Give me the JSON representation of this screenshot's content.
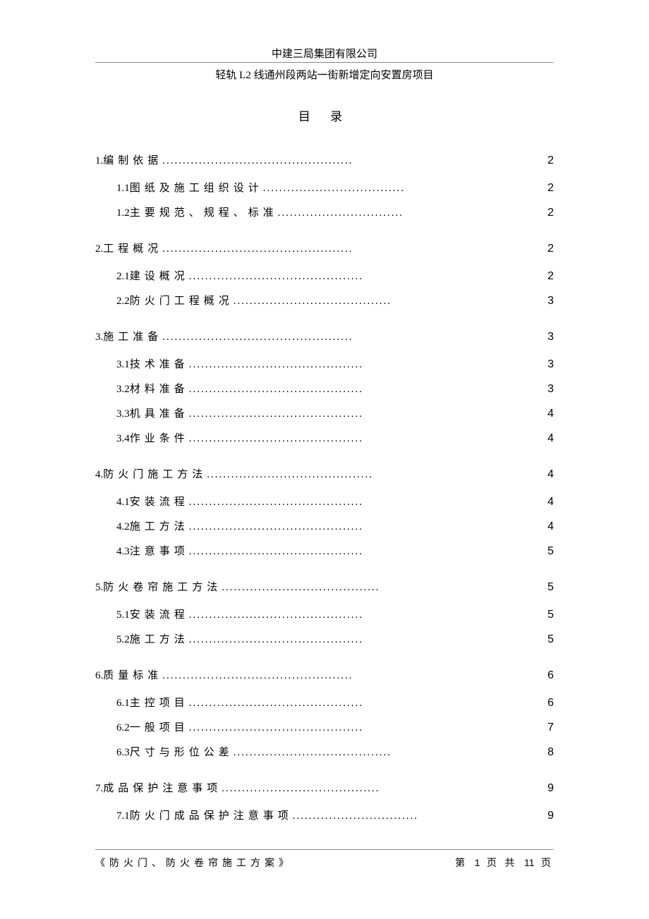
{
  "header": {
    "company": "中建三局集团有限公司",
    "project": "轻轨 L2 线通州段两站一街新增定向安置房项目"
  },
  "title": "目 录",
  "toc": [
    {
      "level": 1,
      "num": "1.",
      "label": "编制依据",
      "dots": "...............................................",
      "page": "2"
    },
    {
      "level": 2,
      "num": "1.1",
      "label": " 图纸及施工组织设计",
      "dots": "...................................",
      "page": "2"
    },
    {
      "level": 2,
      "num": "1.2",
      "label": " 主要规范、规程、标准",
      "dots": "...............................",
      "page": "2"
    },
    {
      "level": 1,
      "num": "2.",
      "label": "工程概况",
      "dots": "...............................................",
      "page": "2"
    },
    {
      "level": 2,
      "num": "2.1",
      "label": " 建设概况",
      "dots": "...........................................",
      "page": "2"
    },
    {
      "level": 2,
      "num": "2.2",
      "label": " 防火门工程概况",
      "dots": ".......................................",
      "page": "3"
    },
    {
      "level": 1,
      "num": "3.",
      "label": "施工准备",
      "dots": "...............................................",
      "page": "3"
    },
    {
      "level": 2,
      "num": "3.1",
      "label": " 技术准备",
      "dots": "...........................................",
      "page": "3"
    },
    {
      "level": 2,
      "num": "3.2",
      "label": " 材料准备",
      "dots": "...........................................",
      "page": "3"
    },
    {
      "level": 2,
      "num": "3.3",
      "label": " 机具准备",
      "dots": "...........................................",
      "page": "4"
    },
    {
      "level": 2,
      "num": "3.4",
      "label": " 作业条件",
      "dots": "...........................................",
      "page": "4"
    },
    {
      "level": 1,
      "num": "4.",
      "label": "防火门施工方法",
      "dots": ".........................................",
      "page": "4"
    },
    {
      "level": 2,
      "num": "4.1",
      "label": " 安装流程",
      "dots": "...........................................",
      "page": "4"
    },
    {
      "level": 2,
      "num": "4.2",
      "label": " 施工方法",
      "dots": "...........................................",
      "page": "4"
    },
    {
      "level": 2,
      "num": "4.3",
      "label": " 注意事项",
      "dots": "...........................................",
      "page": "5"
    },
    {
      "level": 1,
      "num": "5.",
      "label": "防火卷帘施工方法",
      "dots": ".......................................",
      "page": "5"
    },
    {
      "level": 2,
      "num": "5.1",
      "label": " 安装流程",
      "dots": "...........................................",
      "page": "5"
    },
    {
      "level": 2,
      "num": "5.2",
      "label": " 施工方法",
      "dots": "...........................................",
      "page": "5"
    },
    {
      "level": 1,
      "num": "6.",
      "label": "质量标准",
      "dots": "...............................................",
      "page": "6"
    },
    {
      "level": 2,
      "num": "6.1",
      "label": " 主控项目",
      "dots": "...........................................",
      "page": "6"
    },
    {
      "level": 2,
      "num": "6.2",
      "label": " 一般项目",
      "dots": "...........................................",
      "page": "7"
    },
    {
      "level": 2,
      "num": "6.3",
      "label": " 尺寸与形位公差",
      "dots": ".......................................",
      "page": "8"
    },
    {
      "level": 1,
      "num": "7.",
      "label": "成品保护注意事项",
      "dots": ".......................................",
      "page": "9"
    },
    {
      "level": 2,
      "num": "7.1",
      "label": " 防火门成品保护注意事项",
      "dots": "...............................",
      "page": "9"
    }
  ],
  "footer": {
    "doc_name": "《防火门、防火卷帘施工方案》",
    "page_label_pre": "第",
    "page_current": "1",
    "page_label_mid": "页 共",
    "page_total": "11",
    "page_label_post": "页"
  }
}
